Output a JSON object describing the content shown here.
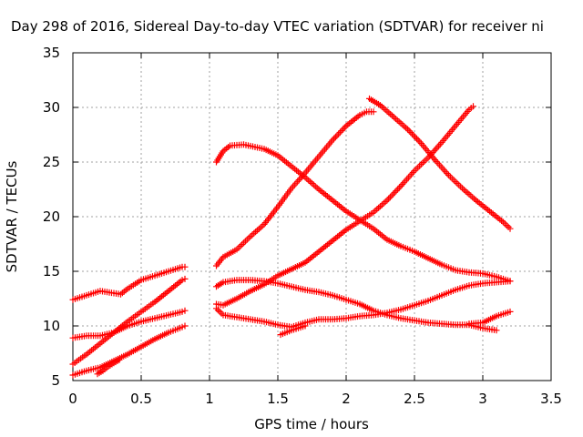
{
  "chart_data": {
    "type": "scatter",
    "title": "Day 298 of 2016, Sidereal Day-to-day VTEC variation (SDTVAR) for receiver ni",
    "xlabel": "GPS time / hours",
    "ylabel": "SDTVAR / TECUs",
    "xlim": [
      0,
      3.5
    ],
    "ylim": [
      5,
      35
    ],
    "x_ticks": [
      0,
      0.5,
      1,
      1.5,
      2,
      2.5,
      3,
      3.5
    ],
    "x_tick_labels": [
      "0",
      "0.5",
      "1",
      "1.5",
      "2",
      "2.5",
      "3",
      "3.5"
    ],
    "y_ticks": [
      5,
      10,
      15,
      20,
      25,
      30,
      35
    ],
    "y_tick_labels": [
      "5",
      "10",
      "15",
      "20",
      "25",
      "30",
      "35"
    ],
    "grid": true,
    "marker": "+",
    "color": "#ff0000",
    "series": [
      {
        "points": [
          [
            0,
            12.4
          ],
          [
            0.1,
            12.8
          ],
          [
            0.2,
            13.2
          ],
          [
            0.3,
            13.0
          ],
          [
            0.35,
            12.9
          ],
          [
            0.4,
            13.4
          ],
          [
            0.5,
            14.2
          ],
          [
            0.6,
            14.6
          ],
          [
            0.7,
            15.0
          ],
          [
            0.8,
            15.4
          ],
          [
            0.82,
            15.4
          ]
        ]
      },
      {
        "points": [
          [
            0,
            8.9
          ],
          [
            0.1,
            9.1
          ],
          [
            0.2,
            9.1
          ],
          [
            0.3,
            9.4
          ],
          [
            0.4,
            10.0
          ],
          [
            0.5,
            10.4
          ],
          [
            0.6,
            10.7
          ],
          [
            0.7,
            11.0
          ],
          [
            0.8,
            11.3
          ],
          [
            0.82,
            11.4
          ]
        ]
      },
      {
        "points": [
          [
            0,
            6.5
          ],
          [
            0.1,
            7.4
          ],
          [
            0.2,
            8.4
          ],
          [
            0.3,
            9.4
          ],
          [
            0.4,
            10.4
          ],
          [
            0.5,
            11.3
          ],
          [
            0.6,
            12.2
          ],
          [
            0.7,
            13.2
          ],
          [
            0.8,
            14.2
          ],
          [
            0.82,
            14.3
          ]
        ]
      },
      {
        "points": [
          [
            0,
            5.5
          ],
          [
            0.1,
            5.9
          ],
          [
            0.2,
            6.2
          ],
          [
            0.3,
            6.8
          ],
          [
            0.4,
            7.4
          ],
          [
            0.5,
            8.1
          ],
          [
            0.6,
            8.8
          ],
          [
            0.7,
            9.4
          ],
          [
            0.8,
            9.9
          ],
          [
            0.82,
            10.0
          ]
        ]
      },
      {
        "points": [
          [
            0.18,
            5.6
          ],
          [
            0.22,
            5.9
          ],
          [
            0.26,
            6.3
          ],
          [
            0.3,
            6.6
          ],
          [
            0.34,
            6.9
          ]
        ]
      },
      {
        "points": [
          [
            1.05,
            25.0
          ],
          [
            1.1,
            26.0
          ],
          [
            1.15,
            26.5
          ],
          [
            1.25,
            26.6
          ],
          [
            1.4,
            26.2
          ],
          [
            1.5,
            25.6
          ],
          [
            1.6,
            24.6
          ],
          [
            1.7,
            23.6
          ],
          [
            1.8,
            22.5
          ],
          [
            1.9,
            21.5
          ],
          [
            2.0,
            20.5
          ],
          [
            2.1,
            19.7
          ],
          [
            2.2,
            18.9
          ],
          [
            2.3,
            17.9
          ],
          [
            2.4,
            17.3
          ],
          [
            2.5,
            16.8
          ],
          [
            2.6,
            16.2
          ],
          [
            2.7,
            15.6
          ],
          [
            2.8,
            15.1
          ],
          [
            2.9,
            14.9
          ],
          [
            3.0,
            14.8
          ],
          [
            3.1,
            14.5
          ],
          [
            3.2,
            14.1
          ]
        ]
      },
      {
        "points": [
          [
            1.05,
            15.5
          ],
          [
            1.1,
            16.3
          ],
          [
            1.2,
            17.0
          ],
          [
            1.3,
            18.2
          ],
          [
            1.4,
            19.3
          ],
          [
            1.5,
            20.9
          ],
          [
            1.6,
            22.6
          ],
          [
            1.7,
            24.0
          ],
          [
            1.8,
            25.5
          ],
          [
            1.9,
            27.0
          ],
          [
            2.0,
            28.3
          ],
          [
            2.1,
            29.3
          ],
          [
            2.15,
            29.6
          ],
          [
            2.2,
            29.6
          ]
        ]
      },
      {
        "points": [
          [
            1.05,
            12.0
          ],
          [
            1.1,
            11.9
          ],
          [
            1.2,
            12.5
          ],
          [
            1.3,
            13.2
          ],
          [
            1.4,
            13.8
          ],
          [
            1.5,
            14.6
          ],
          [
            1.6,
            15.2
          ],
          [
            1.7,
            15.8
          ],
          [
            1.8,
            16.8
          ],
          [
            1.9,
            17.8
          ],
          [
            2.0,
            18.8
          ],
          [
            2.1,
            19.6
          ],
          [
            2.2,
            20.4
          ],
          [
            2.3,
            21.5
          ],
          [
            2.4,
            22.8
          ],
          [
            2.5,
            24.2
          ],
          [
            2.6,
            25.4
          ],
          [
            2.7,
            26.8
          ],
          [
            2.8,
            28.3
          ],
          [
            2.9,
            29.8
          ],
          [
            2.93,
            30.1
          ]
        ]
      },
      {
        "points": [
          [
            1.05,
            13.6
          ],
          [
            1.1,
            14.0
          ],
          [
            1.2,
            14.2
          ],
          [
            1.3,
            14.2
          ],
          [
            1.4,
            14.1
          ],
          [
            1.5,
            13.9
          ],
          [
            1.6,
            13.6
          ],
          [
            1.7,
            13.3
          ],
          [
            1.8,
            13.1
          ],
          [
            1.9,
            12.8
          ],
          [
            2.0,
            12.4
          ],
          [
            2.1,
            12.0
          ],
          [
            2.2,
            11.4
          ],
          [
            2.3,
            11.0
          ],
          [
            2.4,
            10.7
          ],
          [
            2.5,
            10.5
          ],
          [
            2.6,
            10.3
          ],
          [
            2.7,
            10.2
          ],
          [
            2.8,
            10.1
          ],
          [
            2.9,
            10.1
          ],
          [
            3.0,
            9.8
          ],
          [
            3.1,
            9.6
          ]
        ]
      },
      {
        "points": [
          [
            1.05,
            11.6
          ],
          [
            1.1,
            11.0
          ],
          [
            1.2,
            10.8
          ],
          [
            1.3,
            10.6
          ],
          [
            1.4,
            10.4
          ],
          [
            1.5,
            10.1
          ],
          [
            1.6,
            9.9
          ],
          [
            1.7,
            10.3
          ],
          [
            1.8,
            10.6
          ],
          [
            1.9,
            10.6
          ],
          [
            2.0,
            10.7
          ],
          [
            2.1,
            10.9
          ],
          [
            2.2,
            11.0
          ],
          [
            2.3,
            11.2
          ],
          [
            2.4,
            11.5
          ],
          [
            2.5,
            11.9
          ],
          [
            2.6,
            12.3
          ],
          [
            2.7,
            12.8
          ],
          [
            2.8,
            13.3
          ],
          [
            2.9,
            13.7
          ],
          [
            3.0,
            13.9
          ],
          [
            3.1,
            14.0
          ],
          [
            3.2,
            14.1
          ]
        ]
      },
      {
        "points": [
          [
            1.52,
            9.2
          ],
          [
            1.6,
            9.6
          ],
          [
            1.7,
            10.0
          ]
        ]
      },
      {
        "points": [
          [
            2.9,
            10.2
          ],
          [
            3.0,
            10.3
          ],
          [
            3.1,
            10.9
          ],
          [
            3.2,
            11.3
          ]
        ]
      },
      {
        "points": [
          [
            2.17,
            30.8
          ],
          [
            2.25,
            30.2
          ],
          [
            2.35,
            29.1
          ],
          [
            2.45,
            28.0
          ],
          [
            2.55,
            26.7
          ],
          [
            2.65,
            25.2
          ],
          [
            2.75,
            23.8
          ],
          [
            2.85,
            22.6
          ],
          [
            2.95,
            21.5
          ],
          [
            3.05,
            20.5
          ],
          [
            3.15,
            19.5
          ],
          [
            3.2,
            18.9
          ]
        ]
      }
    ]
  }
}
